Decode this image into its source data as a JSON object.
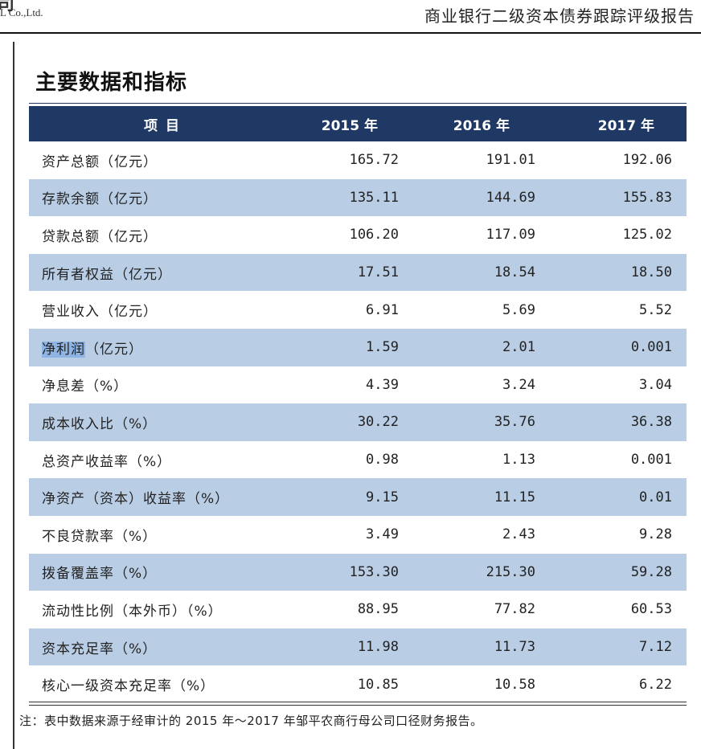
{
  "header": {
    "logo_fragment": "司",
    "logo_subtext": "L Co.,Ltd.",
    "report_title": "商业银行二级资本债券跟踪评级报告"
  },
  "section": {
    "title": "主要数据和指标"
  },
  "table": {
    "columns": [
      "项 目",
      "2015 年",
      "2016 年",
      "2017 年"
    ],
    "rows": [
      {
        "label": "资产总额（亿元）",
        "v2015": "165.72",
        "v2016": "191.01",
        "v2017": "192.06"
      },
      {
        "label": "存款余额（亿元）",
        "v2015": "135.11",
        "v2016": "144.69",
        "v2017": "155.83"
      },
      {
        "label": "贷款总额（亿元）",
        "v2015": "106.20",
        "v2016": "117.09",
        "v2017": "125.02"
      },
      {
        "label": "所有者权益（亿元）",
        "v2015": "17.51",
        "v2016": "18.54",
        "v2017": "18.50"
      },
      {
        "label": "营业收入（亿元）",
        "v2015": "6.91",
        "v2016": "5.69",
        "v2017": "5.52"
      },
      {
        "label_highlight": "净利润",
        "label_rest": "（亿元）",
        "v2015": "1.59",
        "v2016": "2.01",
        "v2017": "0.001"
      },
      {
        "label": "净息差（%）",
        "v2015": "4.39",
        "v2016": "3.24",
        "v2017": "3.04"
      },
      {
        "label": "成本收入比（%）",
        "v2015": "30.22",
        "v2016": "35.76",
        "v2017": "36.38"
      },
      {
        "label": "总资产收益率（%）",
        "v2015": "0.98",
        "v2016": "1.13",
        "v2017": "0.001"
      },
      {
        "label": "净资产（资本）收益率（%）",
        "v2015": "9.15",
        "v2016": "11.15",
        "v2017": "0.01"
      },
      {
        "label": "不良贷款率（%）",
        "v2015": "3.49",
        "v2016": "2.43",
        "v2017": "9.28"
      },
      {
        "label": "拨备覆盖率（%）",
        "v2015": "153.30",
        "v2016": "215.30",
        "v2017": "59.28"
      },
      {
        "label": "流动性比例（本外币）（%）",
        "v2015": "88.95",
        "v2016": "77.82",
        "v2017": "60.53"
      },
      {
        "label": "资本充足率（%）",
        "v2015": "11.98",
        "v2016": "11.73",
        "v2017": "7.12"
      },
      {
        "label": "核心一级资本充足率（%）",
        "v2015": "10.85",
        "v2016": "10.58",
        "v2017": "6.22"
      }
    ]
  },
  "note": "注：表中数据来源于经审计的 2015 年～2017 年邹平农商行母公司口径财务报告。",
  "colors": {
    "header_bg": "#1f3864",
    "alt_row_bg": "#b9cde5",
    "selection_highlight": "#8eb4e3"
  }
}
